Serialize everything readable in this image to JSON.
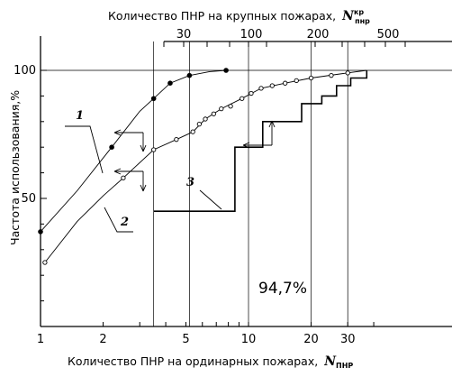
{
  "chart_data": {
    "type": "line",
    "title_top": "Количество ПНР на крупных пожарах,",
    "top_axis_symbol": "N",
    "top_axis_superscript": "кр",
    "top_axis_subscript": "пнр",
    "xlabel": "Количество ПНР на ординарных пожарах,",
    "x_axis_symbol": "N",
    "x_axis_subscript": "ПНР",
    "ylabel": "Частота использования,%",
    "x_scale": "log",
    "xlim": [
      1,
      50
    ],
    "ylim": [
      0,
      100
    ],
    "x_ticks": [
      "1",
      "2",
      "5",
      "10",
      "20",
      "30"
    ],
    "y_ticks": [
      "50",
      "100"
    ],
    "top_ticks": [
      "30",
      "100",
      "200",
      "500"
    ],
    "curve_labels": [
      "1",
      "2",
      "3"
    ],
    "annotation": "94,7%",
    "series": [
      {
        "points": [
          [
            1,
            37
          ],
          [
            2.2,
            70
          ],
          [
            3.5,
            89
          ],
          [
            4.2,
            95
          ],
          [
            5.2,
            98
          ],
          [
            7.8,
            100
          ]
        ]
      },
      {
        "points": [
          [
            2.5,
            58
          ],
          [
            3.5,
            69
          ],
          [
            4.5,
            73
          ],
          [
            5.4,
            76
          ],
          [
            5.8,
            79
          ],
          [
            6.2,
            81
          ],
          [
            6.8,
            83
          ],
          [
            7.4,
            85
          ],
          [
            8.2,
            86
          ],
          [
            9.3,
            89
          ],
          [
            10.3,
            91
          ],
          [
            11.5,
            93
          ],
          [
            13,
            94
          ],
          [
            15,
            95
          ],
          [
            17,
            96
          ],
          [
            20,
            97
          ],
          [
            25,
            98
          ],
          [
            30,
            99
          ]
        ]
      },
      {
        "steps": [
          [
            3.5,
            45
          ],
          [
            8.6,
            45
          ],
          [
            8.6,
            70
          ],
          [
            11.7,
            70
          ],
          [
            11.7,
            80
          ],
          [
            18,
            80
          ],
          [
            18,
            87
          ],
          [
            22.5,
            87
          ],
          [
            22.5,
            90
          ],
          [
            26.5,
            90
          ],
          [
            26.5,
            94
          ],
          [
            31,
            94
          ],
          [
            31,
            97
          ],
          [
            37,
            97
          ],
          [
            37,
            100
          ]
        ]
      }
    ]
  }
}
